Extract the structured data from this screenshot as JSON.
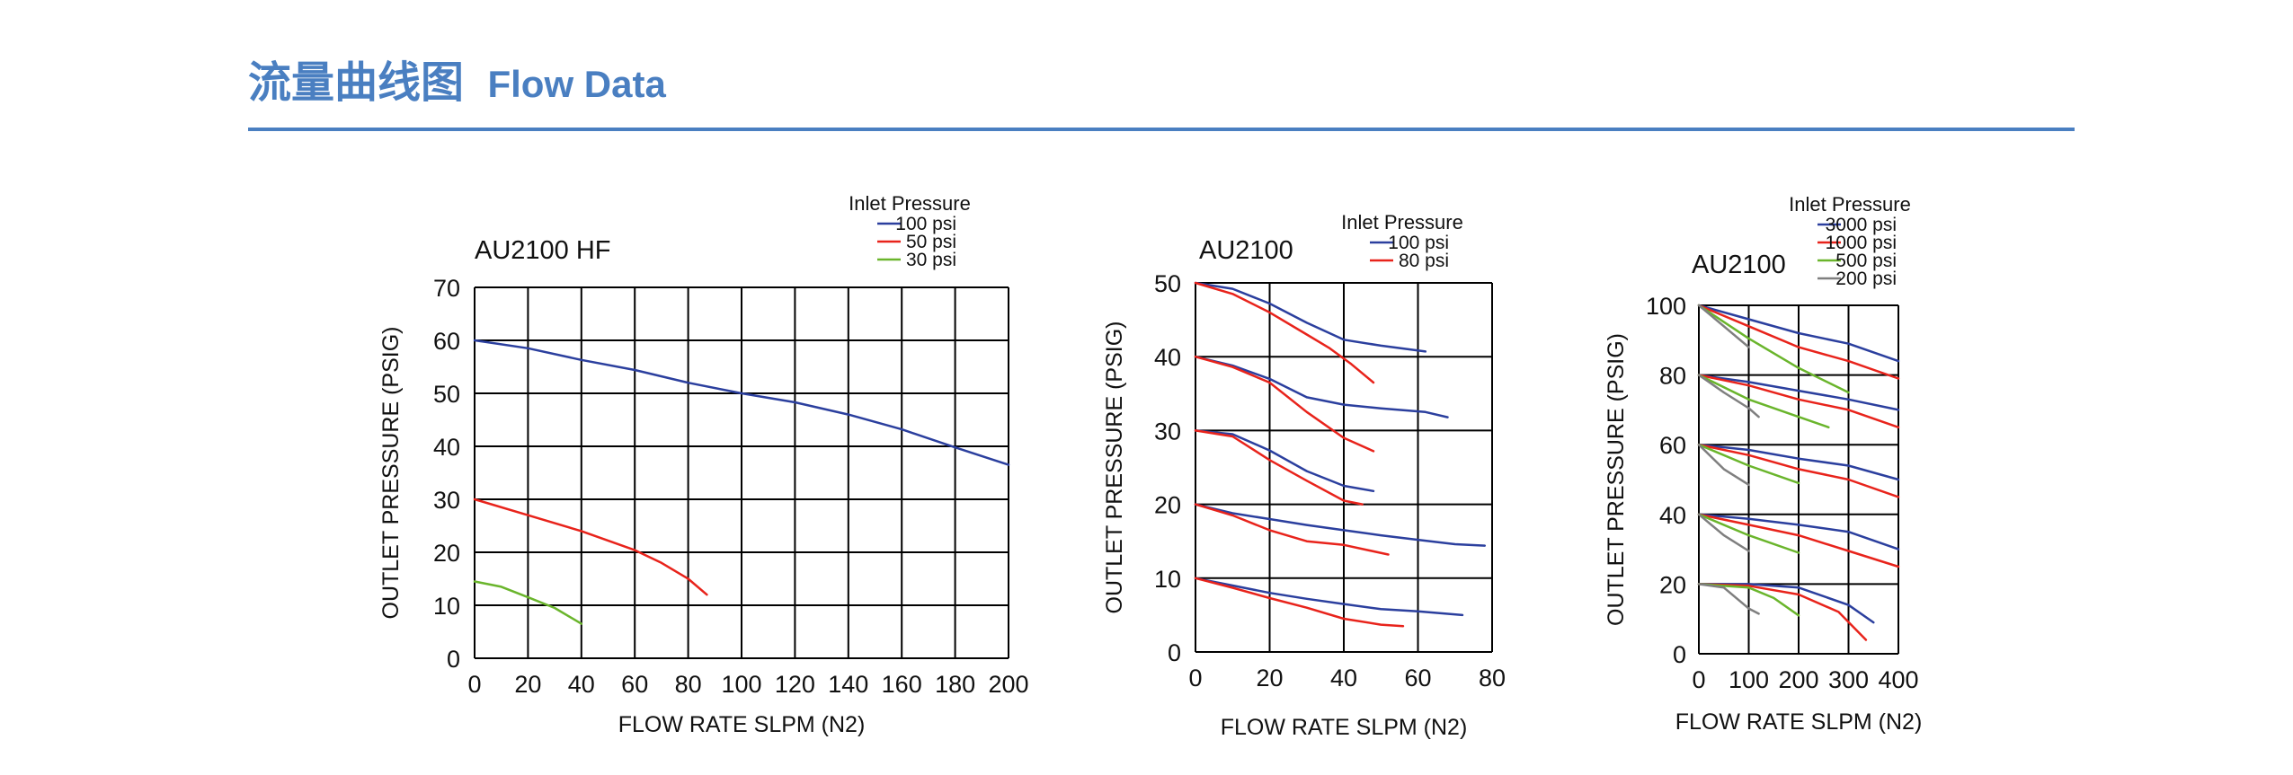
{
  "header": {
    "title_cn": "流量曲线图",
    "title_en": "Flow Data"
  },
  "colors": {
    "accent": "#4a7fc1",
    "blue": "#2b3f9e",
    "red": "#e8231b",
    "green": "#6ab52c",
    "gray": "#7f7f7f",
    "grid": "#000000"
  },
  "chart_data": [
    {
      "type": "line",
      "title": "AU2100 HF",
      "xlabel": "FLOW RATE SLPM (N2)",
      "ylabel": "OUTLET PRESSURE (PSIG)",
      "xlim": [
        0,
        200
      ],
      "ylim": [
        0,
        70
      ],
      "xticks": [
        0,
        20,
        40,
        60,
        80,
        100,
        120,
        140,
        160,
        180,
        200
      ],
      "yticks": [
        0,
        10,
        20,
        30,
        40,
        50,
        60,
        70
      ],
      "grid": true,
      "legend": {
        "title": "Inlet Pressure",
        "position": "top-right",
        "items": [
          {
            "label": "100  psi",
            "color": "blue"
          },
          {
            "label": "50  psi",
            "color": "red"
          },
          {
            "label": "30  psi",
            "color": "green"
          }
        ]
      },
      "series": [
        {
          "name": "100  psi",
          "color": "blue",
          "points": [
            [
              0,
              60
            ],
            [
              20,
              58.5
            ],
            [
              40,
              56.3
            ],
            [
              60,
              54.4
            ],
            [
              80,
              52
            ],
            [
              100,
              50
            ],
            [
              120,
              48.3
            ],
            [
              140,
              46
            ],
            [
              160,
              43.2
            ],
            [
              180,
              39.8
            ],
            [
              200,
              36.5
            ]
          ]
        },
        {
          "name": "50  psi",
          "color": "red",
          "points": [
            [
              0,
              30
            ],
            [
              20,
              27
            ],
            [
              40,
              24
            ],
            [
              60,
              20.4
            ],
            [
              70,
              18
            ],
            [
              80,
              15
            ],
            [
              87,
              12
            ]
          ]
        },
        {
          "name": "30  psi",
          "color": "green",
          "points": [
            [
              0,
              14.5
            ],
            [
              10,
              13.5
            ],
            [
              20,
              11.5
            ],
            [
              30,
              9.5
            ],
            [
              40,
              6.5
            ]
          ]
        }
      ]
    },
    {
      "type": "line",
      "title": "AU2100",
      "xlabel": "FLOW RATE SLPM (N2)",
      "ylabel": "OUTLET PRESSURE (PSIG)",
      "xlim": [
        0,
        80
      ],
      "ylim": [
        0,
        50
      ],
      "xticks": [
        0,
        20,
        40,
        60,
        80
      ],
      "yticks": [
        0,
        10,
        20,
        30,
        40,
        50
      ],
      "grid": true,
      "legend": {
        "title": "Inlet Pressure",
        "position": "top-right",
        "items": [
          {
            "label": "100  psi",
            "color": "blue"
          },
          {
            "label": "80  psi",
            "color": "red"
          }
        ]
      },
      "series": [
        {
          "name": "100  psi",
          "color": "blue",
          "points": [
            [
              0,
              50
            ],
            [
              10,
              49.2
            ],
            [
              20,
              47.2
            ],
            [
              30,
              44.6
            ],
            [
              40,
              42.3
            ],
            [
              50,
              41.5
            ],
            [
              62,
              40.7
            ]
          ]
        },
        {
          "name": "100  psi",
          "color": "blue",
          "points": [
            [
              0,
              40
            ],
            [
              10,
              38.8
            ],
            [
              20,
              37
            ],
            [
              30,
              34.5
            ],
            [
              40,
              33.5
            ],
            [
              50,
              33
            ],
            [
              62,
              32.5
            ],
            [
              68,
              31.8
            ]
          ]
        },
        {
          "name": "100  psi",
          "color": "blue",
          "points": [
            [
              0,
              30
            ],
            [
              10,
              29.5
            ],
            [
              20,
              27.3
            ],
            [
              30,
              24.5
            ],
            [
              40,
              22.5
            ],
            [
              48,
              21.8
            ]
          ]
        },
        {
          "name": "100  psi",
          "color": "blue",
          "points": [
            [
              0,
              20
            ],
            [
              10,
              18.8
            ],
            [
              20,
              18
            ],
            [
              30,
              17.2
            ],
            [
              40,
              16.5
            ],
            [
              50,
              15.8
            ],
            [
              60,
              15.2
            ],
            [
              70,
              14.6
            ],
            [
              78,
              14.4
            ]
          ]
        },
        {
          "name": "100  psi",
          "color": "blue",
          "points": [
            [
              0,
              10
            ],
            [
              10,
              9
            ],
            [
              20,
              8
            ],
            [
              30,
              7.2
            ],
            [
              40,
              6.5
            ],
            [
              50,
              5.8
            ],
            [
              60,
              5.5
            ],
            [
              72,
              5
            ]
          ]
        },
        {
          "name": "80  psi",
          "color": "red",
          "points": [
            [
              0,
              50
            ],
            [
              10,
              48.5
            ],
            [
              20,
              46
            ],
            [
              30,
              43
            ],
            [
              36,
              41.2
            ],
            [
              42,
              39
            ],
            [
              48,
              36.5
            ]
          ]
        },
        {
          "name": "80  psi",
          "color": "red",
          "points": [
            [
              0,
              40
            ],
            [
              10,
              38.6
            ],
            [
              20,
              36.5
            ],
            [
              30,
              32.5
            ],
            [
              40,
              29
            ],
            [
              48,
              27.2
            ]
          ]
        },
        {
          "name": "80  psi",
          "color": "red",
          "points": [
            [
              0,
              30
            ],
            [
              10,
              29.2
            ],
            [
              20,
              26
            ],
            [
              30,
              23.2
            ],
            [
              40,
              20.5
            ],
            [
              45,
              20
            ]
          ]
        },
        {
          "name": "80  psi",
          "color": "red",
          "points": [
            [
              0,
              20
            ],
            [
              10,
              18.5
            ],
            [
              20,
              16.5
            ],
            [
              30,
              15
            ],
            [
              40,
              14.5
            ],
            [
              52,
              13.2
            ]
          ]
        },
        {
          "name": "80  psi",
          "color": "red",
          "points": [
            [
              0,
              10
            ],
            [
              10,
              8.7
            ],
            [
              20,
              7.3
            ],
            [
              30,
              6
            ],
            [
              40,
              4.5
            ],
            [
              50,
              3.7
            ],
            [
              56,
              3.5
            ]
          ]
        }
      ]
    },
    {
      "type": "line",
      "title": "AU2100",
      "xlabel": "FLOW RATE SLPM (N2)",
      "ylabel": "OUTLET PRESSURE (PSIG)",
      "xlim": [
        0,
        400
      ],
      "ylim": [
        0,
        100
      ],
      "xticks": [
        0,
        100,
        200,
        300,
        400
      ],
      "yticks": [
        0,
        20,
        40,
        60,
        80,
        100
      ],
      "grid": true,
      "legend": {
        "title": "Inlet Pressure",
        "position": "top-right",
        "items": [
          {
            "label": "3000  psi",
            "color": "blue"
          },
          {
            "label": "1000  psi",
            "color": "red"
          },
          {
            "label": "500  psi",
            "color": "green"
          },
          {
            "label": "200  psi",
            "color": "gray"
          }
        ]
      },
      "series": [
        {
          "name": "3000  psi",
          "color": "blue",
          "points": [
            [
              0,
              100
            ],
            [
              100,
              96
            ],
            [
              200,
              92
            ],
            [
              300,
              89
            ],
            [
              400,
              84
            ]
          ]
        },
        {
          "name": "3000  psi",
          "color": "blue",
          "points": [
            [
              0,
              80
            ],
            [
              100,
              78
            ],
            [
              200,
              75.5
            ],
            [
              300,
              73
            ],
            [
              400,
              70
            ]
          ]
        },
        {
          "name": "3000  psi",
          "color": "blue",
          "points": [
            [
              0,
              60
            ],
            [
              100,
              58.5
            ],
            [
              200,
              56
            ],
            [
              300,
              54
            ],
            [
              400,
              50
            ]
          ]
        },
        {
          "name": "3000  psi",
          "color": "blue",
          "points": [
            [
              0,
              40
            ],
            [
              100,
              38.7
            ],
            [
              200,
              37
            ],
            [
              300,
              35
            ],
            [
              400,
              30
            ]
          ]
        },
        {
          "name": "3000  psi",
          "color": "blue",
          "points": [
            [
              0,
              20
            ],
            [
              100,
              20
            ],
            [
              200,
              19
            ],
            [
              300,
              14
            ],
            [
              350,
              9
            ]
          ]
        },
        {
          "name": "1000  psi",
          "color": "red",
          "points": [
            [
              0,
              100
            ],
            [
              100,
              94
            ],
            [
              200,
              88
            ],
            [
              300,
              84
            ],
            [
              400,
              79
            ]
          ]
        },
        {
          "name": "1000  psi",
          "color": "red",
          "points": [
            [
              0,
              80
            ],
            [
              100,
              77
            ],
            [
              200,
              73
            ],
            [
              300,
              70
            ],
            [
              400,
              65
            ]
          ]
        },
        {
          "name": "1000  psi",
          "color": "red",
          "points": [
            [
              0,
              60
            ],
            [
              100,
              57
            ],
            [
              200,
              53
            ],
            [
              300,
              50
            ],
            [
              400,
              45
            ]
          ]
        },
        {
          "name": "1000  psi",
          "color": "red",
          "points": [
            [
              0,
              40
            ],
            [
              100,
              37
            ],
            [
              200,
              34
            ],
            [
              300,
              29.5
            ],
            [
              400,
              25
            ]
          ]
        },
        {
          "name": "1000  psi",
          "color": "red",
          "points": [
            [
              0,
              20
            ],
            [
              100,
              19.5
            ],
            [
              200,
              17
            ],
            [
              280,
              12
            ],
            [
              335,
              4
            ]
          ]
        },
        {
          "name": "500  psi",
          "color": "green",
          "points": [
            [
              0,
              100
            ],
            [
              100,
              90.5
            ],
            [
              200,
              82
            ],
            [
              300,
              75
            ]
          ]
        },
        {
          "name": "500  psi",
          "color": "green",
          "points": [
            [
              0,
              80
            ],
            [
              100,
              73
            ],
            [
              200,
              68
            ],
            [
              260,
              65
            ]
          ]
        },
        {
          "name": "500  psi",
          "color": "green",
          "points": [
            [
              0,
              60
            ],
            [
              100,
              54
            ],
            [
              200,
              49
            ]
          ]
        },
        {
          "name": "500  psi",
          "color": "green",
          "points": [
            [
              0,
              40
            ],
            [
              100,
              34
            ],
            [
              200,
              29
            ]
          ]
        },
        {
          "name": "500  psi",
          "color": "green",
          "points": [
            [
              0,
              20
            ],
            [
              100,
              19
            ],
            [
              150,
              16
            ],
            [
              200,
              11
            ]
          ]
        },
        {
          "name": "200  psi",
          "color": "gray",
          "points": [
            [
              0,
              100
            ],
            [
              50,
              94
            ],
            [
              100,
              88
            ]
          ]
        },
        {
          "name": "200  psi",
          "color": "gray",
          "points": [
            [
              0,
              80
            ],
            [
              50,
              75
            ],
            [
              100,
              70.5
            ],
            [
              120,
              68
            ]
          ]
        },
        {
          "name": "200  psi",
          "color": "gray",
          "points": [
            [
              0,
              60
            ],
            [
              50,
              53
            ],
            [
              100,
              48.5
            ]
          ]
        },
        {
          "name": "200  psi",
          "color": "gray",
          "points": [
            [
              0,
              40
            ],
            [
              50,
              34
            ],
            [
              100,
              29.5
            ]
          ]
        },
        {
          "name": "200  psi",
          "color": "gray",
          "points": [
            [
              0,
              20
            ],
            [
              50,
              19
            ],
            [
              100,
              13
            ],
            [
              120,
              11.5
            ]
          ]
        }
      ]
    }
  ]
}
